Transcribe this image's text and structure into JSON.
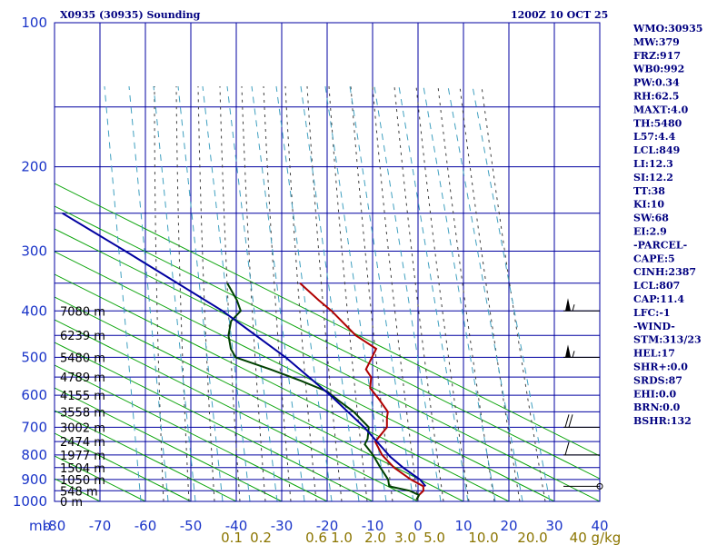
{
  "header": {
    "title": "X0935 (30935) Sounding",
    "datetime": "1200Z 10 OCT 25"
  },
  "indices": [
    "WMO:30935",
    "MW:379",
    "FRZ:917",
    "WB0:992",
    "PW:0.34",
    "RH:62.5",
    "MAXT:4.0",
    "TH:5480",
    "L57:4.4",
    "LCL:849",
    "LI:12.3",
    "SI:12.2",
    "TT:38",
    "KI:10",
    "SW:68",
    "EI:2.9",
    "-PARCEL-",
    "CAPE:5",
    "CINH:2387",
    "LCL:807",
    "CAP:11.4",
    "LFC:-1",
    "-WIND-",
    "STM:313/23",
    "HEL:17",
    "SHR+:0.0",
    "SRDS:87",
    "EHI:0.0",
    "BRN:0.0",
    "BSHR:132"
  ],
  "colors": {
    "frame": "#0000a0",
    "isotherm": "#0000a0",
    "dry_adiabat": "#00a000",
    "moist_adiabat": "#404040",
    "mixing_ratio": "#40a0c0",
    "temperature": "#b00000",
    "dewpoint": "#004000",
    "parcel": "#0000a0",
    "wind": "#000000"
  },
  "chart_data": {
    "type": "line",
    "subtype": "skew-T log-p sounding",
    "y_axis": {
      "label": "mb",
      "scale": "log",
      "range": [
        1000,
        100
      ],
      "ticks": [
        "100",
        "200",
        "300",
        "400",
        "500",
        "600",
        "700",
        "800",
        "900",
        "1000"
      ]
    },
    "x_axis": {
      "unit": "°C",
      "range": [
        -80,
        40
      ],
      "ticks": [
        "-80",
        "-70",
        "-60",
        "-50",
        "-40",
        "-30",
        "-20",
        "-10",
        "0",
        "10",
        "20",
        "30",
        "40"
      ]
    },
    "mixing_ratio_labels": [
      "0.1",
      "0.2",
      "0.6",
      "1.0",
      "2.0",
      "3.0",
      "5.0",
      "10.0",
      "20.0",
      "40 g/kg"
    ],
    "height_labels": [
      {
        "p": 400,
        "text": "7080 m"
      },
      {
        "p": 450,
        "text": "6239 m"
      },
      {
        "p": 500,
        "text": "5480 m"
      },
      {
        "p": 550,
        "text": "4789 m"
      },
      {
        "p": 600,
        "text": "4155 m"
      },
      {
        "p": 650,
        "text": "3558 m"
      },
      {
        "p": 700,
        "text": "3002 m"
      },
      {
        "p": 750,
        "text": "2474 m"
      },
      {
        "p": 800,
        "text": "1977 m"
      },
      {
        "p": 850,
        "text": "1504 m"
      },
      {
        "p": 900,
        "text": "1050 m"
      },
      {
        "p": 950,
        "text": "548 m"
      },
      {
        "p": 1000,
        "text": "0 m"
      }
    ],
    "series": [
      {
        "key": "temperature",
        "points": [
          [
            992,
            -0.5
          ],
          [
            970,
            -0.5
          ],
          [
            950,
            0
          ],
          [
            930,
            -0.5
          ],
          [
            900,
            -4
          ],
          [
            850,
            -9
          ],
          [
            800,
            -13
          ],
          [
            750,
            -16
          ],
          [
            700,
            -15
          ],
          [
            670,
            -16
          ],
          [
            650,
            -16.5
          ],
          [
            610,
            -20
          ],
          [
            580,
            -23
          ],
          [
            550,
            -24
          ],
          [
            530,
            -26
          ],
          [
            500,
            -26
          ],
          [
            480,
            -26
          ],
          [
            450,
            -32
          ],
          [
            400,
            -40
          ],
          [
            380,
            -44
          ],
          [
            350,
            -50
          ]
        ]
      },
      {
        "key": "dewpoint",
        "points": [
          [
            992,
            -0.5
          ],
          [
            970,
            -0.5
          ],
          [
            950,
            -3
          ],
          [
            930,
            -8
          ],
          [
            900,
            -9
          ],
          [
            850,
            -12
          ],
          [
            800,
            -15
          ],
          [
            760,
            -18
          ],
          [
            740,
            -18
          ],
          [
            700,
            -19
          ],
          [
            650,
            -24
          ],
          [
            620,
            -28
          ],
          [
            590,
            -32
          ],
          [
            560,
            -39
          ],
          [
            530,
            -47
          ],
          [
            500,
            -56
          ],
          [
            480,
            -58
          ],
          [
            450,
            -60
          ],
          [
            420,
            -61
          ],
          [
            400,
            -60
          ],
          [
            380,
            -62
          ],
          [
            350,
            -66
          ]
        ]
      },
      {
        "key": "parcel",
        "points": [
          [
            930,
            0
          ],
          [
            900,
            -2
          ],
          [
            850,
            -7
          ],
          [
            807,
            -11
          ],
          [
            700,
            -20
          ],
          [
            600,
            -31
          ],
          [
            500,
            -45
          ],
          [
            400,
            -64
          ],
          [
            300,
            -92
          ],
          [
            250,
            -110
          ]
        ]
      }
    ],
    "wind_barbs": [
      {
        "p": 400,
        "dir": 270,
        "speed": 55
      },
      {
        "p": 500,
        "dir": 270,
        "speed": 55
      },
      {
        "p": 700,
        "dir": 290,
        "speed": 20
      },
      {
        "p": 800,
        "dir": 300,
        "speed": 10
      },
      {
        "p": 930,
        "dir": 0,
        "speed": 0
      }
    ]
  }
}
